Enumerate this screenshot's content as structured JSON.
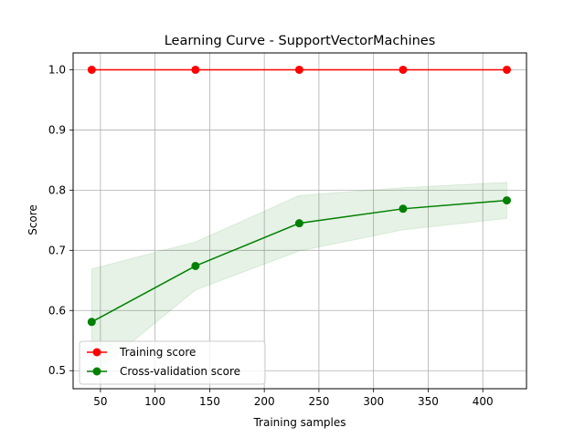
{
  "chart_data": {
    "type": "line",
    "title": "Learning Curve - SupportVectorMachines",
    "xlabel": "Training samples",
    "ylabel": "Score",
    "xlim": [
      25.0,
      440.0
    ],
    "ylim": [
      0.47,
      1.028
    ],
    "xticks": [
      50,
      100,
      150,
      200,
      250,
      300,
      350,
      400
    ],
    "yticks": [
      0.5,
      0.6,
      0.7,
      0.8,
      0.9,
      1.0
    ],
    "grid": true,
    "legend_position": "lower-left",
    "x": [
      42,
      137,
      232,
      327,
      422
    ],
    "series": [
      {
        "name": "Training score",
        "color": "#ff0000",
        "values": [
          1.0,
          1.0,
          1.0,
          1.0,
          1.0
        ],
        "band_upper": [
          1.0,
          1.0,
          1.0,
          1.0,
          1.0
        ],
        "band_lower": [
          1.0,
          1.0,
          1.0,
          1.0,
          1.0
        ]
      },
      {
        "name": "Cross-validation score",
        "color": "#008000",
        "values": [
          0.581,
          0.674,
          0.745,
          0.769,
          0.783
        ],
        "band_upper": [
          0.669,
          0.714,
          0.791,
          0.804,
          0.813
        ],
        "band_lower": [
          0.493,
          0.634,
          0.699,
          0.734,
          0.753
        ]
      }
    ]
  }
}
